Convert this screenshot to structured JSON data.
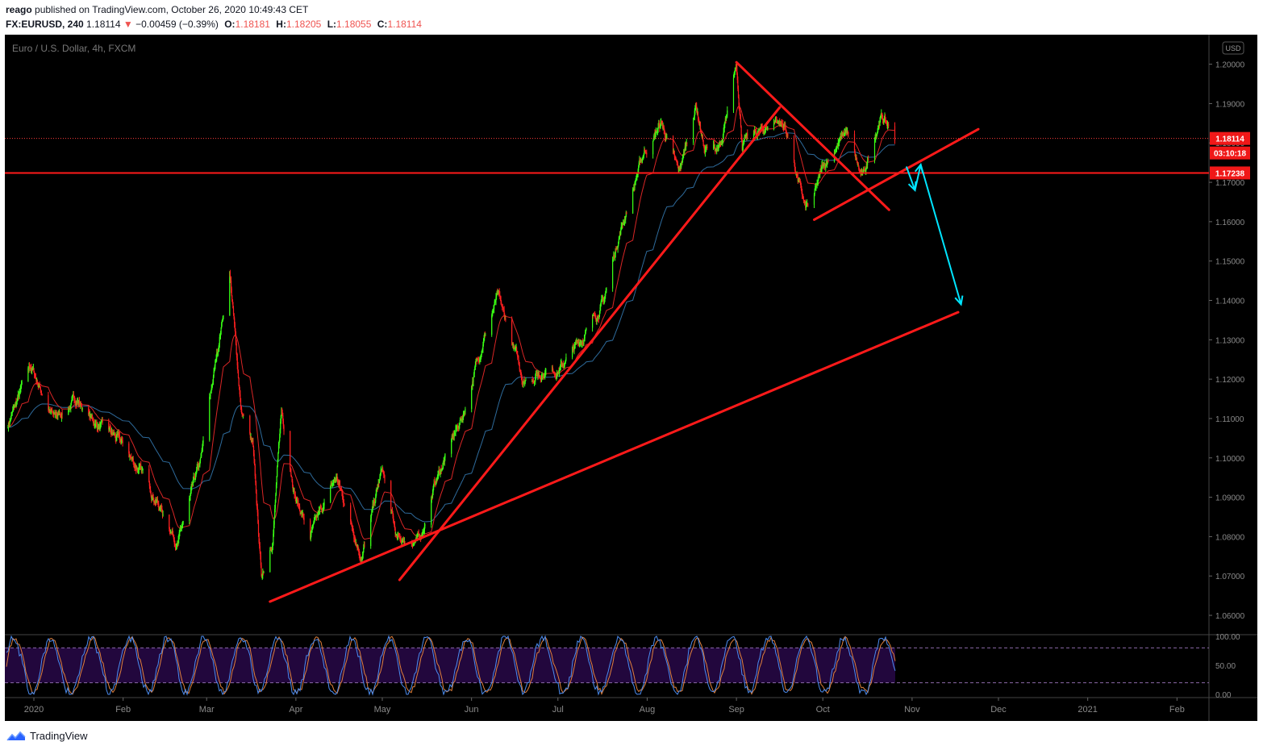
{
  "header": {
    "author": "reago",
    "published_text": "published on TradingView.com, October 26, 2020 10:49:43 CET",
    "symbol": "FX:EURUSD, 240",
    "last": "1.18114",
    "change_arrow": "▼",
    "change": "−0.00459 (−0.39%)",
    "o_label": "O:",
    "o_value": "1.18181",
    "h_label": "H:",
    "h_value": "1.18205",
    "l_label": "L:",
    "l_value": "1.18055",
    "c_label": "C:",
    "c_value": "1.18114"
  },
  "chart_data": {
    "type": "candlestick",
    "title": "Euro / U.S. Dollar, 4h, FXCM",
    "currency_label": "USD",
    "ylim": [
      1.0555,
      1.2075
    ],
    "y_ticks": [
      "1.20000",
      "1.19000",
      "1.18000",
      "1.17000",
      "1.16000",
      "1.15000",
      "1.14000",
      "1.13000",
      "1.12000",
      "1.11000",
      "1.10000",
      "1.09000",
      "1.08000",
      "1.07000",
      "1.06000"
    ],
    "x_ticks": [
      {
        "label": "2020",
        "date": "2020-01-01"
      },
      {
        "label": "Feb",
        "date": "2020-02-01"
      },
      {
        "label": "Mar",
        "date": "2020-03-01"
      },
      {
        "label": "Apr",
        "date": "2020-04-01"
      },
      {
        "label": "May",
        "date": "2020-05-01"
      },
      {
        "label": "Jun",
        "date": "2020-06-01"
      },
      {
        "label": "Jul",
        "date": "2020-07-01"
      },
      {
        "label": "Aug",
        "date": "2020-08-01"
      },
      {
        "label": "Sep",
        "date": "2020-09-01"
      },
      {
        "label": "Oct",
        "date": "2020-10-01"
      },
      {
        "label": "Nov",
        "date": "2020-11-01"
      },
      {
        "label": "Dec",
        "date": "2020-12-01"
      },
      {
        "label": "2021",
        "date": "2021-01-01"
      },
      {
        "label": "Feb",
        "date": "2021-02-01"
      }
    ],
    "price_path": [
      [
        "2019-12-23",
        1.1085
      ],
      [
        "2019-12-31",
        1.123
      ],
      [
        "2020-01-08",
        1.11
      ],
      [
        "2020-01-16",
        1.115
      ],
      [
        "2020-01-22",
        1.109
      ],
      [
        "2020-01-31",
        1.104
      ],
      [
        "2020-02-10",
        1.093
      ],
      [
        "2020-02-20",
        1.0785
      ],
      [
        "2020-02-28",
        1.099
      ],
      [
        "2020-03-09",
        1.148
      ],
      [
        "2020-03-13",
        1.112
      ],
      [
        "2020-03-17",
        1.103
      ],
      [
        "2020-03-20",
        1.07
      ],
      [
        "2020-03-24",
        1.08
      ],
      [
        "2020-03-27",
        1.112
      ],
      [
        "2020-04-01",
        1.09
      ],
      [
        "2020-04-06",
        1.08
      ],
      [
        "2020-04-15",
        1.095
      ],
      [
        "2020-04-24",
        1.075
      ],
      [
        "2020-05-01",
        1.097
      ],
      [
        "2020-05-06",
        1.079
      ],
      [
        "2020-05-14",
        1.079
      ],
      [
        "2020-05-19",
        1.093
      ],
      [
        "2020-05-29",
        1.111
      ],
      [
        "2020-06-05",
        1.13
      ],
      [
        "2020-06-10",
        1.141
      ],
      [
        "2020-06-19",
        1.12
      ],
      [
        "2020-06-26",
        1.122
      ],
      [
        "2020-07-02",
        1.123
      ],
      [
        "2020-07-09",
        1.13
      ],
      [
        "2020-07-17",
        1.14
      ],
      [
        "2020-07-22",
        1.156
      ],
      [
        "2020-07-31",
        1.178
      ],
      [
        "2020-08-06",
        1.185
      ],
      [
        "2020-08-12",
        1.172
      ],
      [
        "2020-08-18",
        1.19
      ],
      [
        "2020-08-21",
        1.178
      ],
      [
        "2020-08-27",
        1.179
      ],
      [
        "2020-09-01",
        1.2
      ],
      [
        "2020-09-03",
        1.18
      ],
      [
        "2020-09-10",
        1.183
      ],
      [
        "2020-09-15",
        1.186
      ],
      [
        "2020-09-18",
        1.184
      ],
      [
        "2020-09-25",
        1.163
      ],
      [
        "2020-09-28",
        1.166
      ],
      [
        "2020-10-01",
        1.174
      ],
      [
        "2020-10-09",
        1.183
      ],
      [
        "2020-10-14",
        1.172
      ],
      [
        "2020-10-15",
        1.171
      ],
      [
        "2020-10-21",
        1.187
      ],
      [
        "2020-10-23",
        1.185
      ],
      [
        "2020-10-26",
        1.1811
      ]
    ],
    "price_lines": [
      {
        "label": "1.18114",
        "value": 1.18114
      },
      {
        "label": "03:10:18",
        "kind": "countdown"
      },
      {
        "label": "1.17238",
        "value": 1.17238
      }
    ],
    "trendlines": [
      {
        "name": "lower-support-trendline",
        "from": [
          "2020-03-23",
          1.0635
        ],
        "to": [
          "2020-11-17",
          1.137
        ]
      },
      {
        "name": "rising-trendline",
        "from": [
          "2020-05-07",
          1.069
        ],
        "to": [
          "2020-09-16",
          1.189
        ]
      },
      {
        "name": "falling-trendline",
        "from": [
          "2020-09-01",
          1.2005
        ],
        "to": [
          "2020-10-24",
          1.163
        ]
      },
      {
        "name": "wedge-lower-line",
        "from": [
          "2020-09-28",
          1.1605
        ],
        "to": [
          "2020-11-24",
          1.1835
        ]
      }
    ],
    "projection": [
      [
        "2020-10-30",
        1.174
      ],
      [
        "2020-11-02",
        1.168
      ],
      [
        "2020-11-04",
        1.1745
      ],
      [
        "2020-11-18",
        1.139
      ]
    ],
    "stochastic": {
      "ylim": [
        0,
        100
      ],
      "y_ticks": [
        "100.00",
        "50.00",
        "0.00"
      ],
      "bands": [
        20,
        80
      ]
    }
  },
  "footer": {
    "logo_text": "TradingView"
  },
  "colors": {
    "up": "#39ff14",
    "down": "#ff2020",
    "trend": "#ff1a1a",
    "projection": "#00e5ff",
    "ma_fast": "#d92626",
    "ma_slow": "#2e6b9c",
    "stoch_k": "#4b8cf0",
    "stoch_d": "#e0803c"
  }
}
